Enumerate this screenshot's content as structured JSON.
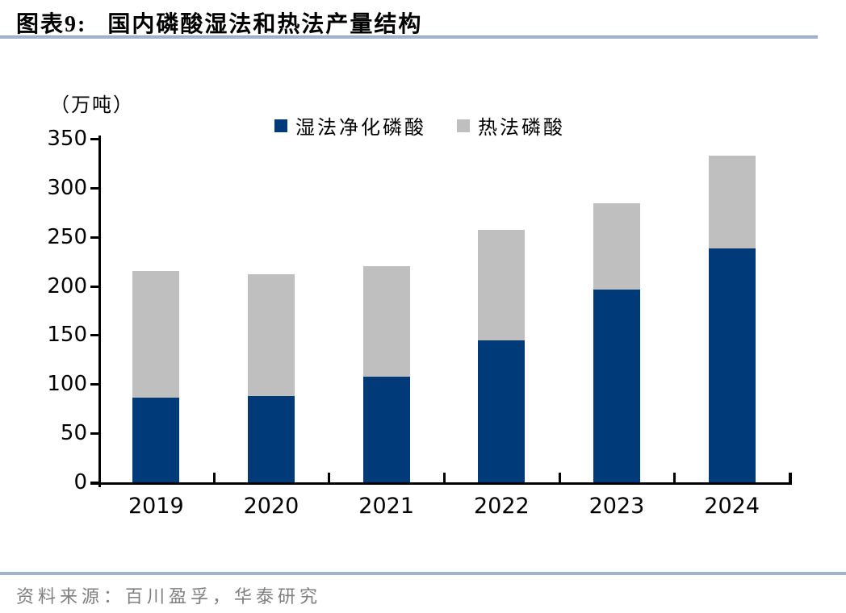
{
  "header": {
    "fig_tag": "图表9:",
    "title": "国内磷酸湿法和热法产量结构"
  },
  "footer": {
    "source": "资料来源：百川盈孚，华泰研究"
  },
  "chart_data": {
    "type": "bar",
    "stacked": true,
    "title": "国内磷酸湿法和热法产量结构",
    "unit_label": "（万吨）",
    "categories": [
      "2019",
      "2020",
      "2021",
      "2022",
      "2023",
      "2024"
    ],
    "series": [
      {
        "name": "湿法净化磷酸",
        "color": "#003a78",
        "values": [
          86,
          88,
          108,
          145,
          196,
          238
        ]
      },
      {
        "name": "热法磷酸",
        "color": "#bfbfbf",
        "values": [
          129,
          124,
          112,
          112,
          88,
          95
        ]
      }
    ],
    "totals": [
      215,
      212,
      220,
      257,
      284,
      333
    ],
    "ylim": [
      0,
      350
    ],
    "ytick_step": 50,
    "yticks": [
      0,
      50,
      100,
      150,
      200,
      250,
      300,
      350
    ],
    "xlabel": "",
    "ylabel": "（万吨）",
    "grid": false,
    "legend_position": "top-center"
  },
  "colors": {
    "bar_wet": "#003a78",
    "bar_thermal": "#bfbfbf",
    "rule_line": "#a3b5cc",
    "axis": "#000000",
    "source_text": "#7f7f7f"
  }
}
